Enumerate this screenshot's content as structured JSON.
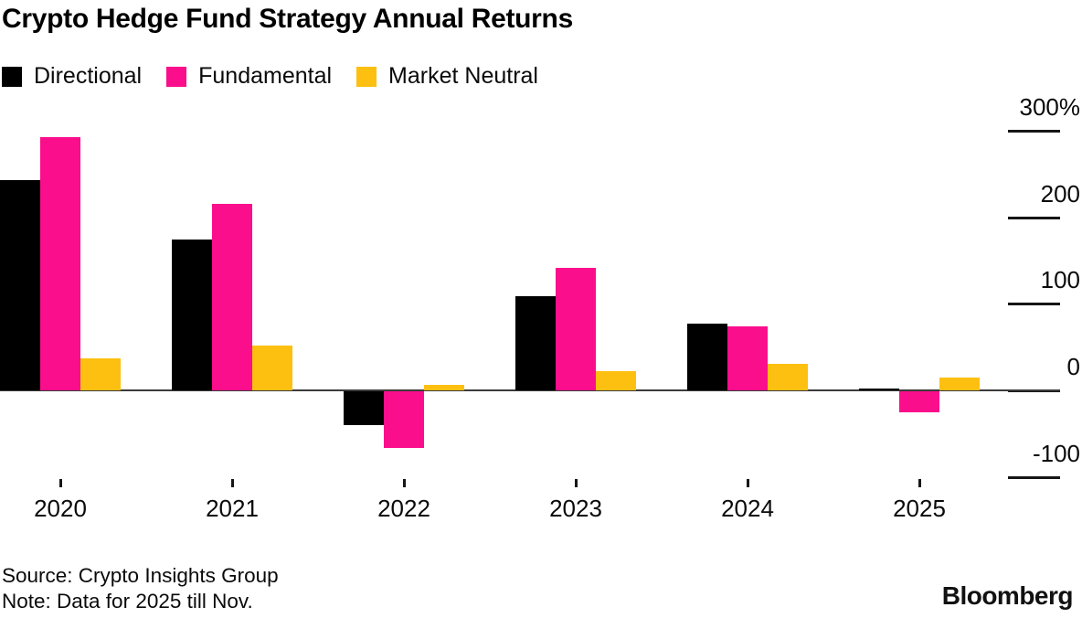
{
  "header": {
    "title": "Crypto Hedge Fund Strategy Annual Returns"
  },
  "legend": [
    {
      "label": "Directional",
      "color": "#000000"
    },
    {
      "label": "Fundamental",
      "color": "#FA0E8C"
    },
    {
      "label": "Market Neutral",
      "color": "#FDC010"
    }
  ],
  "chart_data": {
    "type": "bar",
    "title": "Crypto Hedge Fund Strategy Annual Returns",
    "categories": [
      "2020",
      "2021",
      "2022",
      "2023",
      "2024",
      "2025"
    ],
    "series": [
      {
        "name": "Directional",
        "color": "#000000",
        "values": [
          243,
          174,
          -39,
          109,
          77,
          2
        ]
      },
      {
        "name": "Fundamental",
        "color": "#FA0E8C",
        "values": [
          292,
          215,
          -65,
          141,
          74,
          -24
        ]
      },
      {
        "name": "Market Neutral",
        "color": "#FDC010",
        "values": [
          37,
          52,
          6,
          22,
          31,
          15
        ]
      }
    ],
    "unit": "%",
    "y_ticks": [
      300,
      200,
      100,
      0,
      -100
    ],
    "y_tick_labels": [
      "300%",
      "200",
      "100",
      "0",
      "-100"
    ],
    "ylim": [
      -130,
      330
    ],
    "xlabel": "",
    "ylabel": "",
    "grid": "right-side tick dashes only",
    "legend_position": "top-left",
    "baseline": 0
  },
  "footer": {
    "source": "Source: Crypto Insights Group",
    "note": "Note: Data for 2025 till Nov.",
    "brand": "Bloomberg"
  }
}
